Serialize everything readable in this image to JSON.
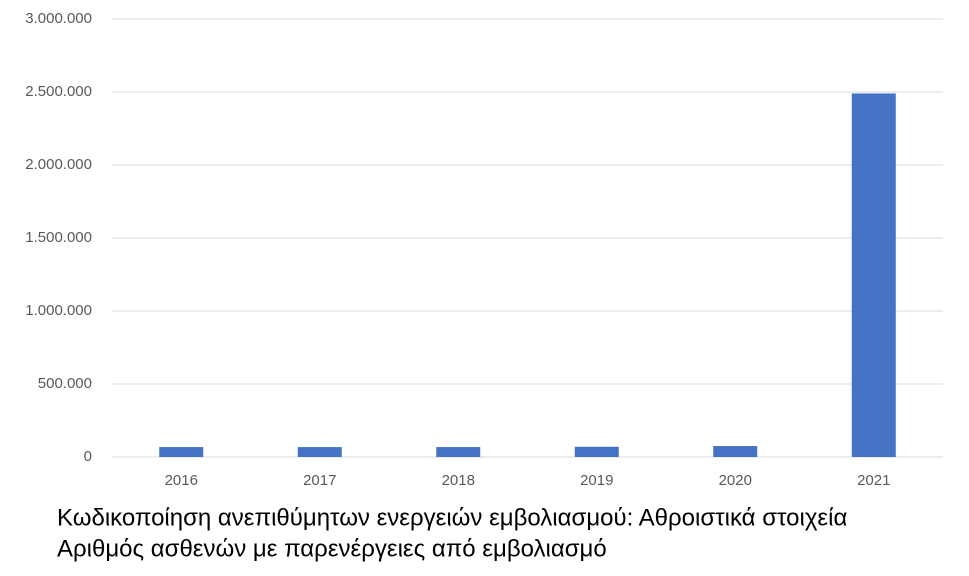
{
  "chart_data": {
    "type": "bar",
    "title": "Κωδικοποίηση ανεπιθύμητων ενεργειών εμβολιασμού: Αθροιστικά στοιχεία",
    "subtitle": "Αριθμός ασθενών με παρενέργειες από εμβολιασμό",
    "categories": [
      "2016",
      "2017",
      "2018",
      "2019",
      "2020",
      "2021"
    ],
    "values": [
      68000,
      68000,
      68000,
      70000,
      75000,
      2490000
    ],
    "color": "#4472c4",
    "ylim": [
      0,
      3000000
    ],
    "yticks": [
      0,
      {
        "value": 500000,
        "label": "500.000"
      },
      {
        "value": 1000000,
        "label": "1.000.000"
      },
      {
        "value": 1500000,
        "label": "1.500.000"
      },
      {
        "value": 2000000,
        "label": "2.000.000"
      },
      {
        "value": 2500000,
        "label": "2.500.000"
      },
      {
        "value": 3000000,
        "label": "3.000.000"
      }
    ],
    "grid": true
  }
}
